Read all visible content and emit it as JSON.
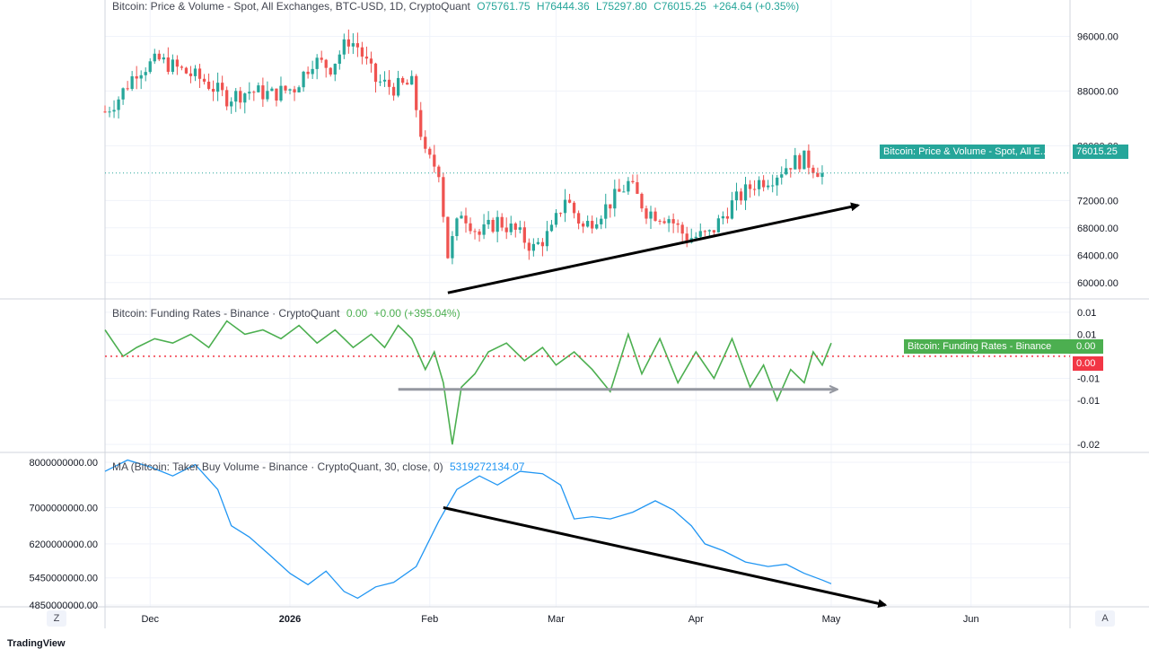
{
  "legends": {
    "price": {
      "title": "Bitcoin: Price & Volume - Spot, All Exchanges, BTC-USD, 1D, CryptoQuant",
      "o": "O75761.75",
      "h": "H76444.36",
      "l": "L75297.80",
      "c": "C76015.25",
      "chg": "+264.64 (+0.35%)"
    },
    "funding": {
      "title": "Bitcoin: Funding Rates - Binance · CryptoQuant",
      "v1": "0.00",
      "v2": "+0.00 (+395.04%)"
    },
    "taker": {
      "title": "MA (Bitcoin: Taker Buy Volume - Binance · CryptoQuant, 30, close, 0)",
      "v1": "5319272134.07"
    }
  },
  "tags": {
    "price_name": "Bitcoin: Price & Volume - Spot, All E...",
    "price_value": "76015.25",
    "funding_name": "Bitcoin: Funding Rates - Binance",
    "funding_value": "0.00",
    "zero_value": "0.00"
  },
  "buttons": {
    "left": "Z",
    "right": "A"
  },
  "brand": "TradingView",
  "colors": {
    "up": "#26a69a",
    "down": "#ef5350",
    "funding": "#4caf50",
    "ma": "#2196f3",
    "zero_line": "#f23645",
    "arrow": "#000000",
    "gray_arrow": "#9598a1"
  },
  "chart_data": [
    {
      "type": "candlestick",
      "title": "Bitcoin: Price & Volume - Spot, All Exchanges, BTC-USD, 1D, CryptoQuant",
      "x_range": [
        "2025-11-21",
        "2026-05-01"
      ],
      "ylim": [
        58000,
        100000
      ],
      "y_ticks": [
        "96000.00",
        "88000.00",
        "80000.00",
        "72000.00",
        "68000.00",
        "64000.00",
        "60000.00"
      ],
      "y_tick_values": [
        96000,
        88000,
        80000,
        72000,
        68000,
        64000,
        60000
      ],
      "last_value": 76015.25,
      "anchors": [
        [
          "2025-11-21",
          85000
        ],
        [
          "2025-11-24",
          87000
        ],
        [
          "2025-11-28",
          91000
        ],
        [
          "2025-12-03",
          92500
        ],
        [
          "2025-12-08",
          91000
        ],
        [
          "2025-12-13",
          89500
        ],
        [
          "2025-12-18",
          87000
        ],
        [
          "2025-12-23",
          88000
        ],
        [
          "2025-12-28",
          87500
        ],
        [
          "2026-01-02",
          88500
        ],
        [
          "2026-01-06",
          92500
        ],
        [
          "2026-01-10",
          91500
        ],
        [
          "2026-01-14",
          95500
        ],
        [
          "2026-01-16",
          94500
        ],
        [
          "2026-01-20",
          89500
        ],
        [
          "2026-01-24",
          88500
        ],
        [
          "2026-01-28",
          89000
        ],
        [
          "2026-01-31",
          78500
        ],
        [
          "2026-02-03",
          76500
        ],
        [
          "2026-02-05",
          64000
        ],
        [
          "2026-02-08",
          70500
        ],
        [
          "2026-02-12",
          67000
        ],
        [
          "2026-02-16",
          69000
        ],
        [
          "2026-02-20",
          67500
        ],
        [
          "2026-02-24",
          65000
        ],
        [
          "2026-02-28",
          67500
        ],
        [
          "2026-03-03",
          72500
        ],
        [
          "2026-03-07",
          68000
        ],
        [
          "2026-03-12",
          71000
        ],
        [
          "2026-03-17",
          74500
        ],
        [
          "2026-03-21",
          70500
        ],
        [
          "2026-03-26",
          69500
        ],
        [
          "2026-03-30",
          66500
        ],
        [
          "2026-04-04",
          67000
        ],
        [
          "2026-04-09",
          71500
        ],
        [
          "2026-04-14",
          74500
        ],
        [
          "2026-04-18",
          75500
        ],
        [
          "2026-04-22",
          77500
        ],
        [
          "2026-04-25",
          78000
        ],
        [
          "2026-04-27",
          77000
        ],
        [
          "2026-04-29",
          76015
        ]
      ],
      "trend_arrow": {
        "from": [
          "2026-02-05",
          58500
        ],
        "to": [
          "2026-05-01",
          71300
        ]
      }
    },
    {
      "type": "line",
      "title": "Bitcoin: Funding Rates - Binance · CryptoQuant",
      "x_range": [
        "2025-11-21",
        "2026-05-01"
      ],
      "ylim": [
        -0.021,
        0.012
      ],
      "y_ticks": [
        "0.01",
        "0.01",
        "-0.01",
        "-0.01",
        "-0.02"
      ],
      "y_tick_values": [
        0.01,
        0.005,
        -0.005,
        -0.01,
        -0.02
      ],
      "zero_line": 0,
      "points": [
        [
          "2025-11-21",
          0.006
        ],
        [
          "2025-11-23",
          0.003
        ],
        [
          "2025-11-25",
          0.0
        ],
        [
          "2025-11-28",
          0.002
        ],
        [
          "2025-12-02",
          0.004
        ],
        [
          "2025-12-06",
          0.003
        ],
        [
          "2025-12-10",
          0.005
        ],
        [
          "2025-12-14",
          0.002
        ],
        [
          "2025-12-18",
          0.008
        ],
        [
          "2025-12-22",
          0.005
        ],
        [
          "2025-12-26",
          0.006
        ],
        [
          "2025-12-30",
          0.004
        ],
        [
          "2026-01-03",
          0.007
        ],
        [
          "2026-01-07",
          0.003
        ],
        [
          "2026-01-11",
          0.006
        ],
        [
          "2026-01-15",
          0.002
        ],
        [
          "2026-01-19",
          0.005
        ],
        [
          "2026-01-22",
          0.002
        ],
        [
          "2026-01-25",
          0.007
        ],
        [
          "2026-01-28",
          0.004
        ],
        [
          "2026-01-31",
          -0.003
        ],
        [
          "2026-02-02",
          0.001
        ],
        [
          "2026-02-04",
          -0.006
        ],
        [
          "2026-02-06",
          -0.02
        ],
        [
          "2026-02-08",
          -0.007
        ],
        [
          "2026-02-11",
          -0.004
        ],
        [
          "2026-02-14",
          0.001
        ],
        [
          "2026-02-18",
          0.003
        ],
        [
          "2026-02-22",
          -0.001
        ],
        [
          "2026-02-26",
          0.002
        ],
        [
          "2026-03-01",
          -0.002
        ],
        [
          "2026-03-05",
          0.001
        ],
        [
          "2026-03-09",
          -0.003
        ],
        [
          "2026-03-13",
          -0.008
        ],
        [
          "2026-03-17",
          0.005
        ],
        [
          "2026-03-20",
          -0.004
        ],
        [
          "2026-03-24",
          0.004
        ],
        [
          "2026-03-28",
          -0.006
        ],
        [
          "2026-04-01",
          0.001
        ],
        [
          "2026-04-05",
          -0.005
        ],
        [
          "2026-04-09",
          0.004
        ],
        [
          "2026-04-13",
          -0.007
        ],
        [
          "2026-04-16",
          -0.002
        ],
        [
          "2026-04-19",
          -0.01
        ],
        [
          "2026-04-22",
          -0.003
        ],
        [
          "2026-04-25",
          -0.006
        ],
        [
          "2026-04-27",
          0.001
        ],
        [
          "2026-04-29",
          -0.002
        ],
        [
          "2026-05-01",
          0.003
        ]
      ],
      "arrow": {
        "from": [
          "2026-01-28",
          -0.0075
        ],
        "to": [
          "2026-05-01",
          -0.0075
        ]
      }
    },
    {
      "type": "line",
      "title": "MA (Bitcoin: Taker Buy Volume - Binance · CryptoQuant, 30, close, 0)",
      "x_range": [
        "2025-11-21",
        "2026-05-01"
      ],
      "ylim": [
        4850000000,
        8100000000
      ],
      "y_ticks": [
        "8000000000.00",
        "7000000000.00",
        "6200000000.00",
        "5450000000.00",
        "4850000000.00"
      ],
      "y_tick_values": [
        8000000000,
        7000000000,
        6200000000,
        5450000000,
        4850000000
      ],
      "points": [
        [
          "2025-11-21",
          7800000000
        ],
        [
          "2025-11-26",
          8050000000
        ],
        [
          "2025-12-01",
          7900000000
        ],
        [
          "2025-12-06",
          7700000000
        ],
        [
          "2025-12-11",
          7950000000
        ],
        [
          "2025-12-16",
          7400000000
        ],
        [
          "2025-12-19",
          6600000000
        ],
        [
          "2025-12-23",
          6350000000
        ],
        [
          "2025-12-27",
          6000000000
        ],
        [
          "2026-01-01",
          5550000000
        ],
        [
          "2026-01-05",
          5300000000
        ],
        [
          "2026-01-09",
          5600000000
        ],
        [
          "2026-01-13",
          5150000000
        ],
        [
          "2026-01-16",
          5000000000
        ],
        [
          "2026-01-20",
          5250000000
        ],
        [
          "2026-01-24",
          5350000000
        ],
        [
          "2026-01-29",
          5700000000
        ],
        [
          "2026-02-03",
          6700000000
        ],
        [
          "2026-02-07",
          7400000000
        ],
        [
          "2026-02-12",
          7700000000
        ],
        [
          "2026-02-16",
          7500000000
        ],
        [
          "2026-02-21",
          7800000000
        ],
        [
          "2026-02-26",
          7750000000
        ],
        [
          "2026-03-02",
          7500000000
        ],
        [
          "2026-03-05",
          6750000000
        ],
        [
          "2026-03-09",
          6800000000
        ],
        [
          "2026-03-13",
          6750000000
        ],
        [
          "2026-03-18",
          6900000000
        ],
        [
          "2026-03-23",
          7150000000
        ],
        [
          "2026-03-27",
          6950000000
        ],
        [
          "2026-03-31",
          6600000000
        ],
        [
          "2026-04-03",
          6200000000
        ],
        [
          "2026-04-07",
          6050000000
        ],
        [
          "2026-04-12",
          5800000000
        ],
        [
          "2026-04-17",
          5700000000
        ],
        [
          "2026-04-21",
          5750000000
        ],
        [
          "2026-04-25",
          5550000000
        ],
        [
          "2026-04-29",
          5400000000
        ],
        [
          "2026-05-01",
          5319272134
        ]
      ],
      "trend_arrow": {
        "from": [
          "2026-02-04",
          7000000000
        ],
        "to": [
          "2026-05-13",
          4850000000
        ]
      }
    }
  ],
  "x_axis": {
    "labels": [
      {
        "text": "Dec",
        "date": "2025-12-01",
        "bold": false
      },
      {
        "text": "2026",
        "date": "2026-01-01",
        "bold": true
      },
      {
        "text": "Feb",
        "date": "2026-02-01",
        "bold": false
      },
      {
        "text": "Mar",
        "date": "2026-03-01",
        "bold": false
      },
      {
        "text": "Apr",
        "date": "2026-04-01",
        "bold": false
      },
      {
        "text": "May",
        "date": "2026-05-01",
        "bold": false
      },
      {
        "text": "Jun",
        "date": "2026-06-01",
        "bold": false
      }
    ]
  }
}
